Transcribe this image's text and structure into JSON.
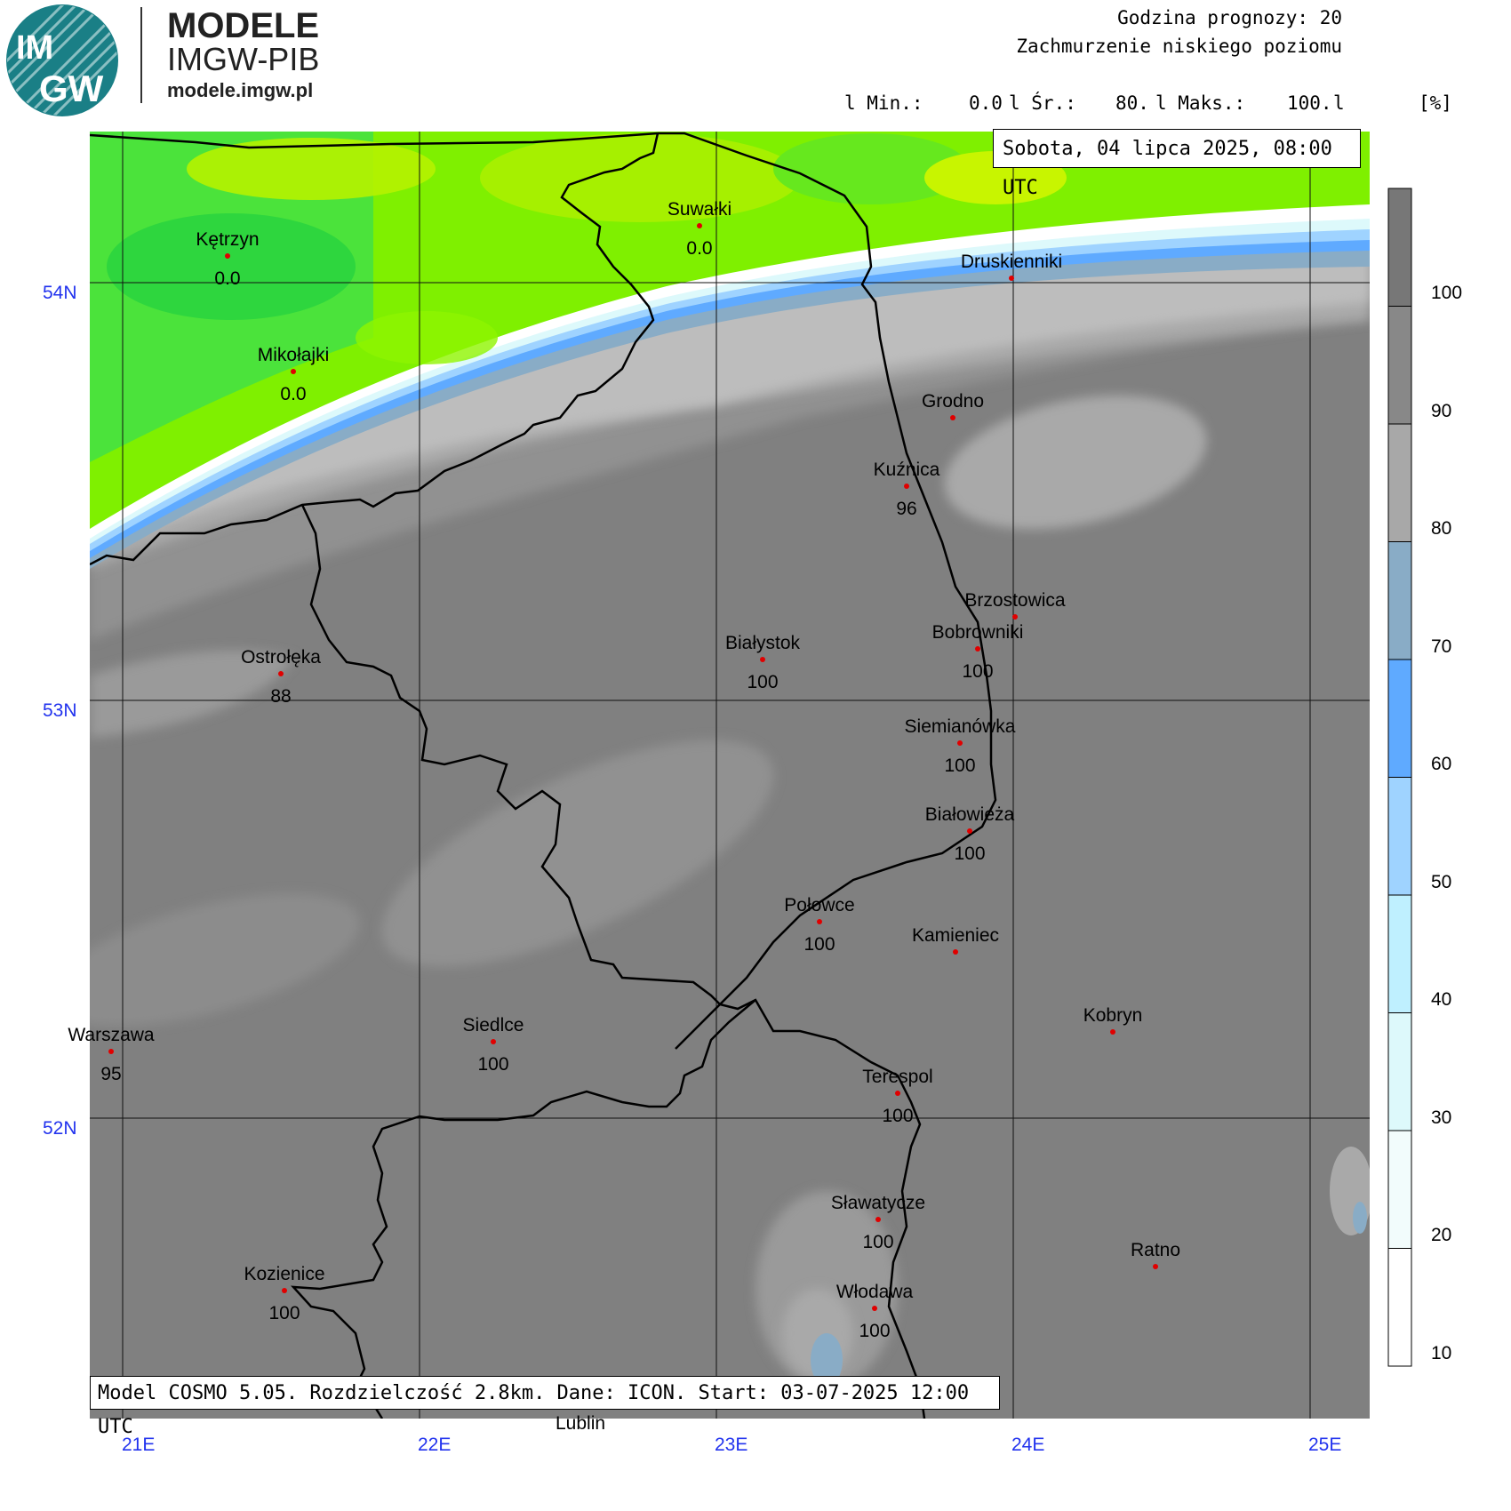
{
  "brand": {
    "line1": "MODELE",
    "line2": "IMGW-PIB",
    "line3": "modele.imgw.pl",
    "logo_text_top": "IM",
    "logo_text_bottom": "GW"
  },
  "header": {
    "forecast_hour": "Godzina prognozy: 20",
    "parameter": "Zachmurzenie niskiego poziomu"
  },
  "stats": {
    "min_label": "l Min.:",
    "min_value": "0.0",
    "avg_label": "l Śr.:",
    "avg_value": "80.",
    "max_label": "l Maks.:",
    "max_value": "100.",
    "end_sep": "l",
    "unit": "[%]"
  },
  "date_label": "Sobota, 04 lipca 2025, 08:00 UTC",
  "model_label": "Model COSMO 5.05. Rozdzielczość 2.8km. Dane: ICON. Start: 03-07-2025 12:00 UTC",
  "extra_label": "Lublin",
  "axes": {
    "lat_labels": [
      "54N",
      "53N",
      "52N"
    ],
    "lon_labels": [
      "21E",
      "22E",
      "23E",
      "24E",
      "25E"
    ]
  },
  "legend": {
    "ticks": [
      "100",
      "90",
      "80",
      "70",
      "60",
      "50",
      "40",
      "30",
      "20",
      "10"
    ],
    "colors": [
      "#777777",
      "#888888",
      "#a8a8a8",
      "#89acc6",
      "#5faaff",
      "#9fd3ff",
      "#bff0ff",
      "#ddf9fb",
      "#f2fcfc",
      "#ffffff"
    ]
  },
  "cities": [
    {
      "name": "Kętrzyn",
      "value": "0.0"
    },
    {
      "name": "Suwałki",
      "value": "0.0"
    },
    {
      "name": "Mikołajki",
      "value": "0.0"
    },
    {
      "name": "Druskienniki",
      "value": ""
    },
    {
      "name": "Grodno",
      "value": ""
    },
    {
      "name": "Kuźnica",
      "value": "96"
    },
    {
      "name": "Brzostowica",
      "value": ""
    },
    {
      "name": "Bobrowniki",
      "value": "100"
    },
    {
      "name": "Białystok",
      "value": "100"
    },
    {
      "name": "Ostrołęka",
      "value": "88"
    },
    {
      "name": "Siemianówka",
      "value": "100"
    },
    {
      "name": "Białowieża",
      "value": "100"
    },
    {
      "name": "Połowce",
      "value": "100"
    },
    {
      "name": "Kamieniec",
      "value": ""
    },
    {
      "name": "Kobryn",
      "value": ""
    },
    {
      "name": "Warszawa",
      "value": "95"
    },
    {
      "name": "Siedlce",
      "value": "100"
    },
    {
      "name": "Terespol",
      "value": "100"
    },
    {
      "name": "Sławatycze",
      "value": "100"
    },
    {
      "name": "Ratno",
      "value": ""
    },
    {
      "name": "Kozienice",
      "value": "100"
    },
    {
      "name": "Włodawa",
      "value": "100"
    }
  ]
}
